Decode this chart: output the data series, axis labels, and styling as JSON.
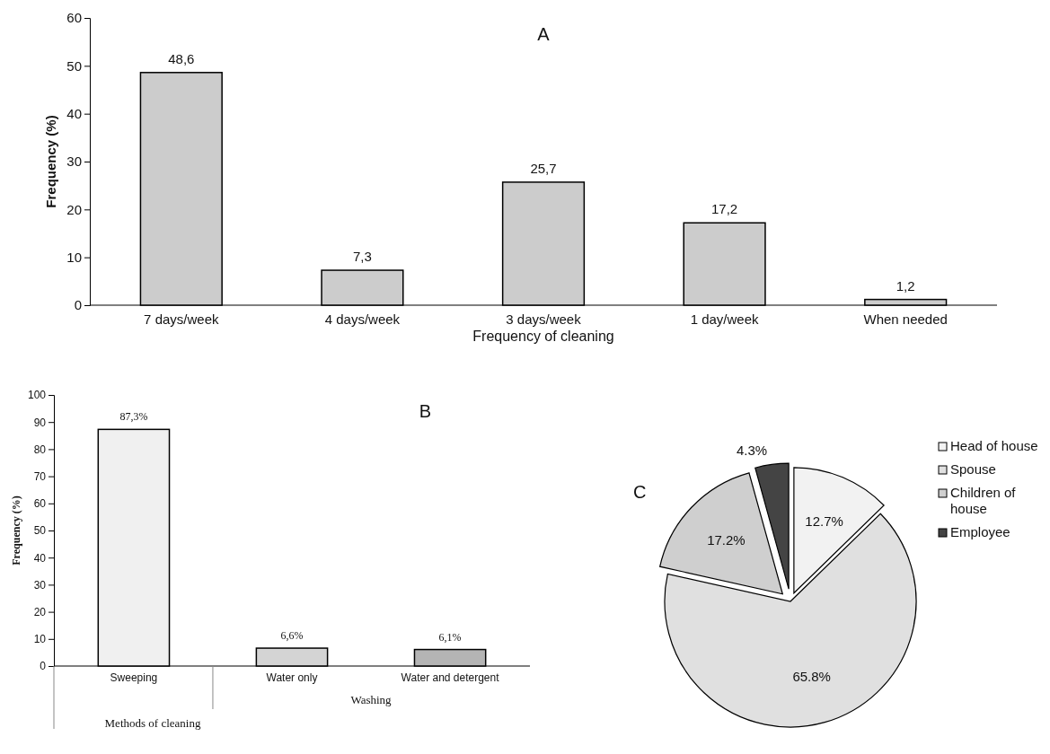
{
  "chart_data": [
    {
      "type": "bar",
      "title": "A",
      "xlabel": "Frequency of cleaning",
      "ylabel": "Frequency (%)",
      "categories": [
        "7 days/week",
        "4 days/week",
        "3 days/week",
        "1 day/week",
        "When needed"
      ],
      "values": [
        48.6,
        7.3,
        25.7,
        17.2,
        1.2
      ],
      "value_labels": [
        "48,6",
        "7,3",
        "25,7",
        "17,2",
        "1,2"
      ],
      "color": "#cccccc",
      "ylim": [
        0,
        60
      ],
      "yticks": [
        0,
        10,
        20,
        30,
        40,
        50,
        60
      ]
    },
    {
      "type": "bar",
      "title": "B",
      "xlabel": "Methods of cleaning",
      "ylabel": "Frequency (%)",
      "categories": [
        "Sweeping",
        "Water only",
        "Water and detergent"
      ],
      "values": [
        87.3,
        6.6,
        6.1
      ],
      "value_labels": [
        "87,3%",
        "6,6%",
        "6,1%"
      ],
      "colors": [
        "#f0f0f0",
        "#d4d4d4",
        "#b4b4b4"
      ],
      "ylim": [
        0,
        100
      ],
      "yticks": [
        0,
        10,
        20,
        30,
        40,
        50,
        60,
        70,
        80,
        90,
        100
      ],
      "annotations": [
        "Washing"
      ]
    },
    {
      "type": "pie",
      "title": "C",
      "categories": [
        "Head of house",
        "Spouse",
        "Children of house",
        "Employee"
      ],
      "values": [
        12.7,
        65.8,
        17.2,
        4.3
      ],
      "value_labels": [
        "12.7%",
        "65.8%",
        "17.2%",
        "4.3%"
      ],
      "colors": [
        "#f2f2f2",
        "#e0e0e0",
        "#cfcfcf",
        "#444444"
      ],
      "legend": "top right"
    }
  ]
}
